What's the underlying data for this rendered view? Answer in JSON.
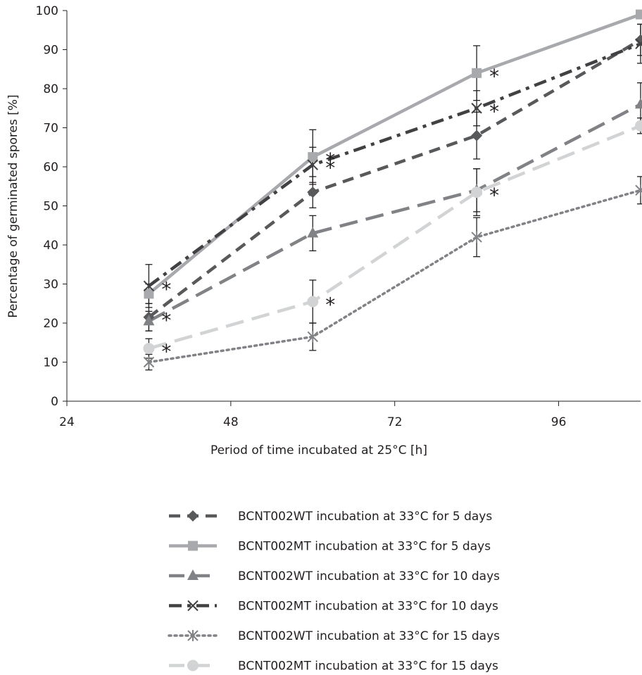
{
  "chart_data": {
    "type": "line",
    "title": "",
    "xlabel": "Period of time incubated at 25°C [h]",
    "ylabel": "Percentage of germinated spores [%]",
    "x_ticks": [
      24,
      48,
      72,
      96
    ],
    "y_ticks": [
      0,
      10,
      20,
      30,
      40,
      50,
      60,
      70,
      80,
      90,
      100
    ],
    "xlim": [
      24,
      108
    ],
    "ylim": [
      0,
      100
    ],
    "x": [
      36,
      60,
      84,
      108
    ],
    "legend_position": "bottom",
    "grid": false,
    "series": [
      {
        "name": "BCNT002WT incubation at 33°C for 5 days",
        "marker": "diamond",
        "line": "dash",
        "color": "#58595b",
        "values": [
          21.5,
          53.5,
          68,
          92.5
        ],
        "errors": [
          3.5,
          4,
          6,
          4
        ],
        "significant": [
          true,
          false,
          false,
          true
        ]
      },
      {
        "name": "BCNT002MT incubation at 33°C for 5 days",
        "marker": "square",
        "line": "solid",
        "color": "#a7a9ac",
        "values": [
          27.5,
          62.5,
          84,
          99
        ],
        "errors": [
          2.5,
          7,
          7,
          1
        ],
        "significant": [
          false,
          true,
          true,
          true
        ]
      },
      {
        "name": "BCNT002WT incubation at 33°C for 10 days",
        "marker": "triangle",
        "line": "longdash",
        "color": "#808285",
        "values": [
          20.5,
          43,
          54,
          76
        ],
        "errors": [
          2.5,
          4.5,
          5.5,
          5.5
        ],
        "significant": [
          false,
          false,
          false,
          false
        ]
      },
      {
        "name": "BCNT002MT incubation at 33°C for 10 days",
        "marker": "x",
        "line": "dashdot",
        "color": "#414042",
        "values": [
          29.5,
          60.5,
          75,
          91.5
        ],
        "errors": [
          5.5,
          4.5,
          4.5,
          5
        ],
        "significant": [
          true,
          true,
          true,
          false
        ]
      },
      {
        "name": "BCNT002WT incubation at 33°C for 15 days",
        "marker": "asterisk",
        "line": "dot",
        "color": "#808285",
        "values": [
          10,
          16.5,
          42,
          54
        ],
        "errors": [
          2,
          3.5,
          5,
          3.5
        ],
        "significant": [
          false,
          false,
          false,
          false
        ]
      },
      {
        "name": "BCNT002MT incubation at 33°C for 15 days",
        "marker": "circle",
        "line": "longdash",
        "color": "#d1d3d4",
        "values": [
          13.5,
          25.5,
          53.5,
          70.5
        ],
        "errors": [
          2.5,
          5.5,
          6,
          2
        ],
        "significant": [
          true,
          true,
          true,
          true
        ]
      }
    ],
    "annotation_symbol": "*"
  }
}
